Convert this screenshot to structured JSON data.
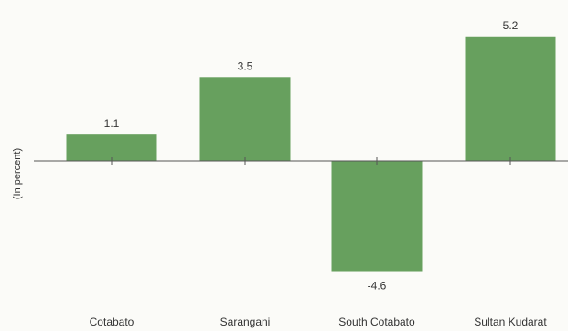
{
  "chart_data": {
    "type": "bar",
    "categories": [
      "Cotabato",
      "Sarangani",
      "South Cotabato",
      "Sultan Kudarat"
    ],
    "values": [
      1.1,
      3.5,
      -4.6,
      5.2
    ],
    "data_labels": [
      "1.1",
      "3.5",
      "-4.6",
      "5.2"
    ],
    "title": "",
    "xlabel": "",
    "ylabel": "(In percent)",
    "ylim": [
      -4.6,
      5.2
    ],
    "grid": false,
    "legend": "none",
    "bar_color": "#67a05e",
    "axis_color": "#555555",
    "text_color": "#333333"
  }
}
